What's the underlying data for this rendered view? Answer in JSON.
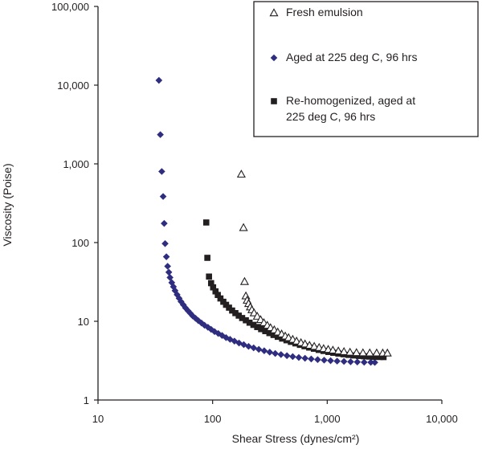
{
  "chart_data": {
    "type": "scatter",
    "title": "",
    "xlabel": "Shear Stress (dynes/cm²)",
    "ylabel": "Viscosity (Poise)",
    "xscale": "log",
    "yscale": "log",
    "xlim": [
      10,
      10000
    ],
    "ylim": [
      1,
      100000
    ],
    "x_ticks": [
      10,
      100,
      1000,
      10000
    ],
    "x_tick_labels": [
      "10",
      "100",
      "1,000",
      "10,000"
    ],
    "y_ticks": [
      1,
      10,
      100,
      1000,
      10000,
      100000
    ],
    "y_tick_labels": [
      "1",
      "10",
      "100",
      "1,000",
      "10,000",
      "100,000"
    ],
    "grid": false,
    "legend_position": "top-right",
    "series": [
      {
        "name": "Fresh emulsion",
        "marker": "triangle-open",
        "color": "#231f20",
        "points": [
          [
            178,
            740
          ],
          [
            186,
            155
          ],
          [
            190,
            32
          ],
          [
            195,
            21
          ],
          [
            200,
            18.5
          ],
          [
            206,
            16.8
          ],
          [
            213,
            15.2
          ],
          [
            220,
            14.0
          ],
          [
            230,
            12.8
          ],
          [
            245,
            11.6
          ],
          [
            262,
            10.5
          ],
          [
            280,
            9.6
          ],
          [
            300,
            8.9
          ],
          [
            320,
            8.3
          ],
          [
            345,
            7.8
          ],
          [
            370,
            7.3
          ],
          [
            400,
            6.9
          ],
          [
            430,
            6.5
          ],
          [
            460,
            6.2
          ],
          [
            500,
            5.9
          ],
          [
            540,
            5.6
          ],
          [
            590,
            5.35
          ],
          [
            640,
            5.15
          ],
          [
            700,
            4.95
          ],
          [
            770,
            4.8
          ],
          [
            850,
            4.65
          ],
          [
            930,
            4.5
          ],
          [
            1020,
            4.4
          ],
          [
            1120,
            4.3
          ],
          [
            1250,
            4.2
          ],
          [
            1400,
            4.12
          ],
          [
            1580,
            4.05
          ],
          [
            1800,
            4.0
          ],
          [
            2050,
            3.98
          ],
          [
            2350,
            3.97
          ],
          [
            2700,
            3.96
          ],
          [
            3050,
            3.95
          ],
          [
            3350,
            3.95
          ]
        ]
      },
      {
        "name": "Aged at 225 deg C, 96 hrs",
        "marker": "diamond",
        "color": "#2e2d7f",
        "points": [
          [
            34,
            11500
          ],
          [
            35,
            2350
          ],
          [
            36,
            800
          ],
          [
            37,
            385
          ],
          [
            37.8,
            175
          ],
          [
            38.5,
            97
          ],
          [
            39.5,
            66
          ],
          [
            40.5,
            50
          ],
          [
            41.5,
            42
          ],
          [
            42.5,
            36
          ],
          [
            44,
            31
          ],
          [
            45.5,
            27.5
          ],
          [
            47,
            24.5
          ],
          [
            49,
            21.8
          ],
          [
            51,
            19.6
          ],
          [
            53,
            17.8
          ],
          [
            55.5,
            16.2
          ],
          [
            58,
            14.8
          ],
          [
            61,
            13.6
          ],
          [
            64,
            12.6
          ],
          [
            67,
            11.7
          ],
          [
            71,
            10.9
          ],
          [
            75,
            10.2
          ],
          [
            80,
            9.5
          ],
          [
            85,
            8.9
          ],
          [
            91,
            8.4
          ],
          [
            97,
            7.9
          ],
          [
            104,
            7.4
          ],
          [
            112,
            7.0
          ],
          [
            121,
            6.6
          ],
          [
            131,
            6.2
          ],
          [
            142,
            5.9
          ],
          [
            155,
            5.6
          ],
          [
            170,
            5.3
          ],
          [
            187,
            5.05
          ],
          [
            206,
            4.8
          ],
          [
            228,
            4.6
          ],
          [
            253,
            4.4
          ],
          [
            282,
            4.22
          ],
          [
            315,
            4.05
          ],
          [
            352,
            3.9
          ],
          [
            395,
            3.78
          ],
          [
            445,
            3.66
          ],
          [
            500,
            3.56
          ],
          [
            565,
            3.47
          ],
          [
            640,
            3.39
          ],
          [
            725,
            3.32
          ],
          [
            825,
            3.26
          ],
          [
            940,
            3.21
          ],
          [
            1070,
            3.16
          ],
          [
            1220,
            3.12
          ],
          [
            1400,
            3.09
          ],
          [
            1600,
            3.06
          ],
          [
            1830,
            3.04
          ],
          [
            2100,
            3.02
          ],
          [
            2400,
            3.01
          ],
          [
            2600,
            3.0
          ]
        ]
      },
      {
        "name": "Re-homogenized, aged at 225 deg C, 96 hrs",
        "marker": "square",
        "color": "#231f20",
        "points": [
          [
            88,
            180
          ],
          [
            90,
            64
          ],
          [
            93,
            37
          ],
          [
            97,
            30.5
          ],
          [
            101,
            27
          ],
          [
            106,
            24
          ],
          [
            111,
            21.6
          ],
          [
            117,
            19.5
          ],
          [
            124,
            17.7
          ],
          [
            131,
            16.2
          ],
          [
            139,
            14.9
          ],
          [
            148,
            13.7
          ],
          [
            158,
            12.7
          ],
          [
            169,
            11.8
          ],
          [
            181,
            11.0
          ],
          [
            195,
            10.3
          ],
          [
            210,
            9.6
          ],
          [
            227,
            9.0
          ],
          [
            245,
            8.45
          ],
          [
            265,
            7.95
          ],
          [
            288,
            7.5
          ],
          [
            313,
            7.08
          ],
          [
            340,
            6.7
          ],
          [
            370,
            6.35
          ],
          [
            404,
            6.03
          ],
          [
            441,
            5.74
          ],
          [
            482,
            5.48
          ],
          [
            528,
            5.24
          ],
          [
            578,
            5.02
          ],
          [
            634,
            4.82
          ],
          [
            696,
            4.64
          ],
          [
            765,
            4.48
          ],
          [
            842,
            4.33
          ],
          [
            928,
            4.2
          ],
          [
            1024,
            4.08
          ],
          [
            1130,
            3.98
          ],
          [
            1250,
            3.89
          ],
          [
            1385,
            3.81
          ],
          [
            1535,
            3.74
          ],
          [
            1700,
            3.68
          ],
          [
            1890,
            3.63
          ],
          [
            2100,
            3.59
          ],
          [
            2330,
            3.56
          ],
          [
            2580,
            3.54
          ],
          [
            2850,
            3.52
          ],
          [
            3100,
            3.51
          ]
        ]
      }
    ],
    "legend": {
      "entries": [
        {
          "marker": "triangle-open",
          "lines": [
            "Fresh emulsion"
          ]
        },
        {
          "marker": "diamond",
          "lines": [
            "Aged at 225 deg C, 96 hrs"
          ]
        },
        {
          "marker": "square",
          "lines": [
            "Re-homogenized, aged at",
            "225 deg C, 96 hrs"
          ]
        }
      ]
    }
  }
}
